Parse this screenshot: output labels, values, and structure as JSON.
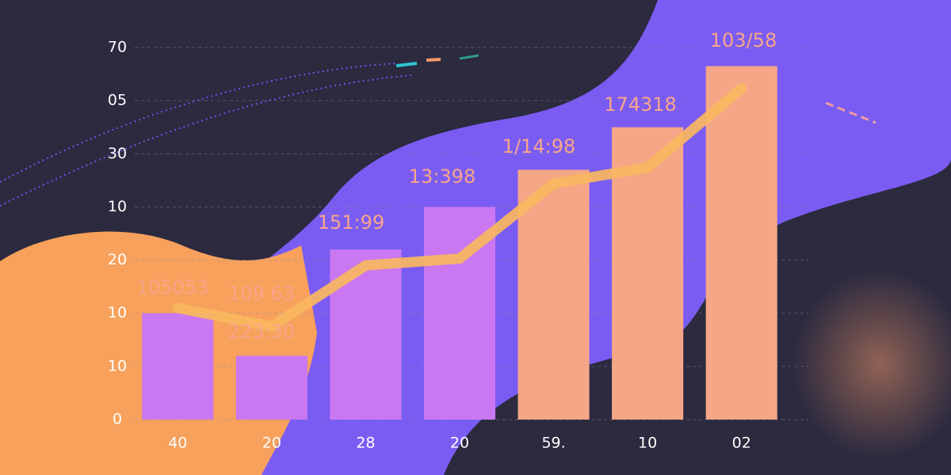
{
  "chart_data": {
    "type": "bar",
    "categories": [
      "40",
      "20",
      "28",
      "20",
      "59.",
      "10",
      "02"
    ],
    "values": [
      20,
      12,
      32,
      40,
      47,
      55,
      66.5
    ],
    "colors": [
      "#c978f2",
      "#c978f2",
      "#c978f2",
      "#c978f2",
      "#f5a687",
      "#f5a687",
      "#f5a687"
    ],
    "line": {
      "values": [
        21,
        17.5,
        29,
        30.3,
        44.4,
        47.4,
        62.3
      ],
      "color": "#f8b760"
    },
    "annotations": [
      "105053",
      "109 63",
      "223:30",
      "151:99",
      "13:398",
      "1/14:98",
      "174318",
      "103/58"
    ],
    "ylim": [
      0,
      70
    ],
    "yticks": [
      0,
      10,
      {
        "value": 20,
        "label": "10"
      },
      {
        "value": 30,
        "label": "20"
      },
      {
        "value": 40,
        "label": "10"
      },
      {
        "value": 50,
        "label": "30"
      },
      {
        "value": 60,
        "label": "05"
      },
      70
    ],
    "grid": true
  }
}
